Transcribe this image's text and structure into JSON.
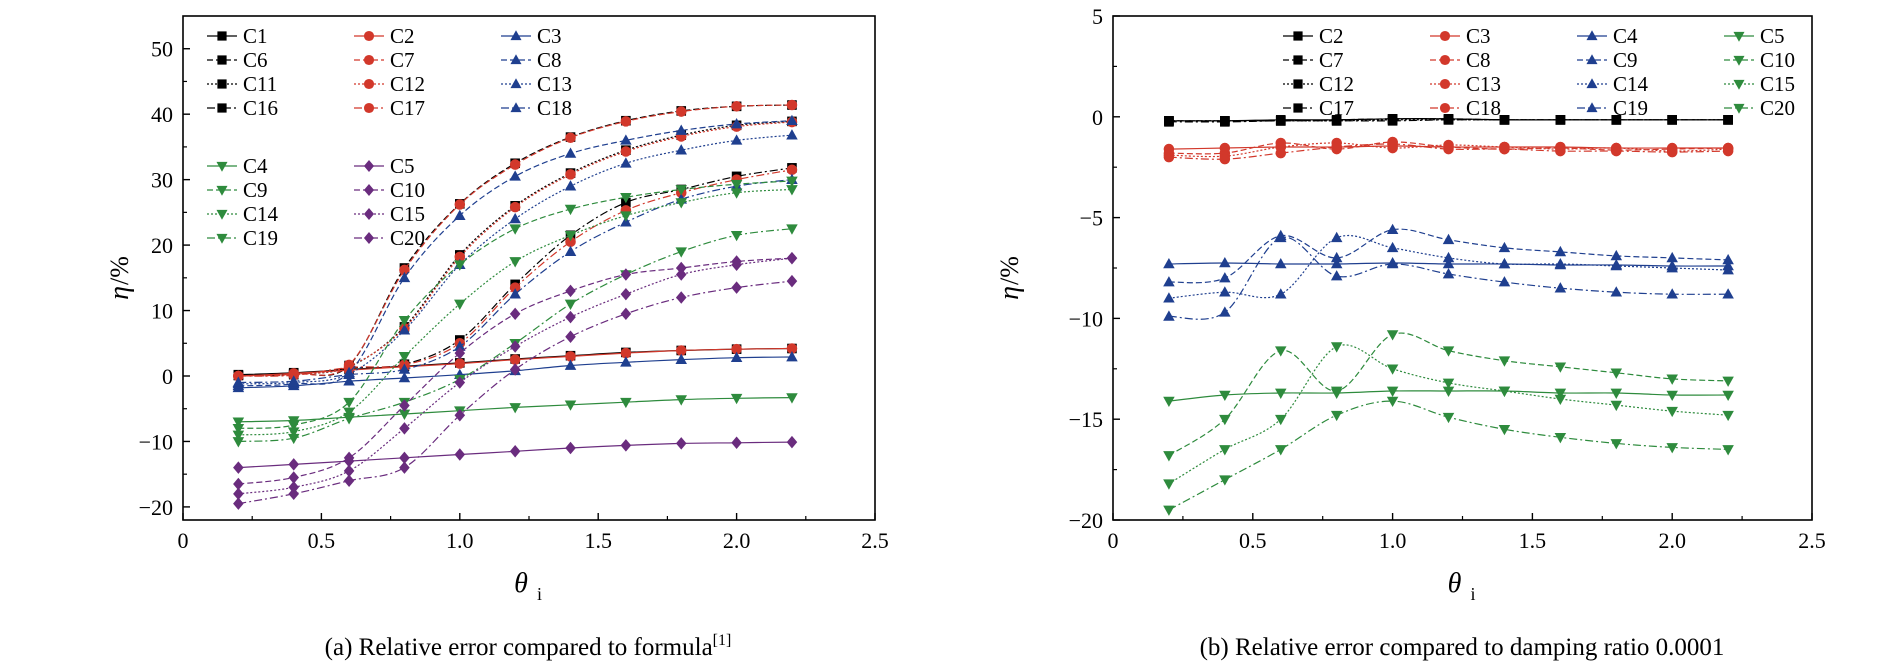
{
  "chart_data": [
    {
      "type": "line",
      "panel_caption": "(a) Relative error compared to formula",
      "caption_superscript": "[1]",
      "xlabel_main": "θ",
      "xlabel_sub": "i",
      "ylabel_main": "η",
      "ylabel_unit": "/%",
      "xlim": [
        0,
        2.5
      ],
      "ylim": [
        -22,
        55
      ],
      "xticks": [
        0,
        0.5,
        1.0,
        1.5,
        2.0,
        2.5
      ],
      "xtick_labels": [
        "0",
        "0.5",
        "1.0",
        "1.5",
        "2.0",
        "2.5"
      ],
      "yticks": [
        -20,
        -10,
        0,
        10,
        20,
        30,
        40,
        50
      ],
      "ytick_labels": [
        "−20",
        "−10",
        "0",
        "10",
        "20",
        "30",
        "40",
        "50"
      ],
      "grid": false,
      "legend_position": "top-left",
      "x": [
        0.2,
        0.4,
        0.6,
        0.8,
        1.0,
        1.2,
        1.4,
        1.6,
        1.8,
        2.0,
        2.2
      ],
      "series": [
        {
          "name": "C1",
          "color": "#000000",
          "marker": "square",
          "values": [
            0.2,
            0.5,
            1.0,
            1.5,
            2.0,
            2.6,
            3.1,
            3.6,
            3.9,
            4.1,
            4.2
          ]
        },
        {
          "name": "C6",
          "color": "#000000",
          "marker": "square",
          "values": [
            0.1,
            0.4,
            1.6,
            16.5,
            26.3,
            32.5,
            36.5,
            39.0,
            40.5,
            41.2,
            41.4
          ]
        },
        {
          "name": "C11",
          "color": "#000000",
          "marker": "square",
          "values": [
            0.1,
            0.3,
            1.4,
            7.5,
            18.5,
            26.0,
            31.0,
            34.5,
            36.8,
            38.3,
            38.9
          ]
        },
        {
          "name": "C16",
          "color": "#000000",
          "marker": "square",
          "values": [
            0.1,
            0.2,
            1.2,
            1.8,
            5.5,
            14.0,
            21.5,
            26.5,
            28.5,
            30.5,
            31.8
          ]
        },
        {
          "name": "C2",
          "color": "#d2382b",
          "marker": "circle",
          "values": [
            0.0,
            0.4,
            0.9,
            1.4,
            1.9,
            2.5,
            3.0,
            3.5,
            3.9,
            4.1,
            4.2
          ]
        },
        {
          "name": "C7",
          "color": "#d2382b",
          "marker": "circle",
          "values": [
            0.0,
            0.3,
            1.7,
            16.2,
            26.2,
            32.3,
            36.4,
            38.9,
            40.4,
            41.2,
            41.4
          ]
        },
        {
          "name": "C12",
          "color": "#d2382b",
          "marker": "circle",
          "values": [
            0.0,
            0.2,
            1.5,
            7.3,
            18.2,
            25.8,
            30.8,
            34.3,
            36.6,
            38.1,
            38.8
          ]
        },
        {
          "name": "C17",
          "color": "#d2382b",
          "marker": "circle",
          "values": [
            0.0,
            0.1,
            1.3,
            1.7,
            5.0,
            13.5,
            20.5,
            25.3,
            28.0,
            30.0,
            31.5
          ]
        },
        {
          "name": "C3",
          "color": "#1f3f8f",
          "marker": "triangle-up",
          "values": [
            -1.8,
            -1.5,
            -0.8,
            -0.3,
            0.2,
            0.8,
            1.6,
            2.1,
            2.5,
            2.8,
            2.9
          ]
        },
        {
          "name": "C8",
          "color": "#1f3f8f",
          "marker": "triangle-up",
          "values": [
            -1.5,
            -1.2,
            0.5,
            15.0,
            24.5,
            30.5,
            34.0,
            36.0,
            37.5,
            38.5,
            39.0
          ]
        },
        {
          "name": "C13",
          "color": "#1f3f8f",
          "marker": "triangle-up",
          "values": [
            -1.2,
            -1.0,
            0.3,
            7.0,
            17.0,
            24.0,
            29.0,
            32.5,
            34.5,
            36.0,
            36.8
          ]
        },
        {
          "name": "C18",
          "color": "#1f3f8f",
          "marker": "triangle-up",
          "values": [
            -1.0,
            -0.8,
            0.2,
            1.0,
            4.5,
            12.5,
            19.0,
            23.5,
            27.0,
            29.0,
            30.0
          ]
        },
        {
          "name": "C4",
          "color": "#2e8b3d",
          "marker": "triangle-down",
          "values": [
            -7.0,
            -6.8,
            -6.3,
            -5.8,
            -5.3,
            -4.8,
            -4.4,
            -4.0,
            -3.6,
            -3.4,
            -3.3
          ]
        },
        {
          "name": "C9",
          "color": "#2e8b3d",
          "marker": "triangle-down",
          "values": [
            -8.0,
            -7.5,
            -4.0,
            8.5,
            17.0,
            22.5,
            25.5,
            27.3,
            28.5,
            29.3,
            29.8
          ]
        },
        {
          "name": "C14",
          "color": "#2e8b3d",
          "marker": "triangle-down",
          "values": [
            -9.0,
            -8.5,
            -5.5,
            3.0,
            11.0,
            17.5,
            21.5,
            24.5,
            26.5,
            28.0,
            28.5
          ]
        },
        {
          "name": "C19",
          "color": "#2e8b3d",
          "marker": "triangle-down",
          "values": [
            -10.0,
            -9.5,
            -6.5,
            -4.0,
            -0.5,
            5.0,
            11.0,
            15.5,
            19.0,
            21.5,
            22.5
          ]
        },
        {
          "name": "C5",
          "color": "#6a2c7e",
          "marker": "diamond",
          "values": [
            -14.0,
            -13.5,
            -13.0,
            -12.5,
            -12.0,
            -11.5,
            -11.0,
            -10.6,
            -10.3,
            -10.2,
            -10.1
          ]
        },
        {
          "name": "C10",
          "color": "#6a2c7e",
          "marker": "diamond",
          "values": [
            -16.5,
            -15.5,
            -12.5,
            -4.5,
            3.5,
            9.5,
            13.0,
            15.5,
            16.5,
            17.5,
            18.0
          ]
        },
        {
          "name": "C15",
          "color": "#6a2c7e",
          "marker": "diamond",
          "values": [
            -18.0,
            -17.0,
            -14.5,
            -8.0,
            -1.0,
            4.5,
            9.0,
            12.5,
            15.5,
            17.0,
            18.0
          ]
        },
        {
          "name": "C20",
          "color": "#6a2c7e",
          "marker": "diamond",
          "values": [
            -19.5,
            -18.0,
            -16.0,
            -14.0,
            -6.0,
            1.0,
            6.0,
            9.5,
            12.0,
            13.5,
            14.5
          ]
        }
      ]
    },
    {
      "type": "line",
      "panel_caption": "(b) Relative error compared to damping ratio 0.0001",
      "xlabel_main": "θ",
      "xlabel_sub": "i",
      "ylabel_main": "η",
      "ylabel_unit": "/%",
      "xlim": [
        0,
        2.5
      ],
      "ylim": [
        -20,
        5
      ],
      "xticks": [
        0,
        0.5,
        1.0,
        1.5,
        2.0,
        2.5
      ],
      "xtick_labels": [
        "0",
        "0.5",
        "1.0",
        "1.5",
        "2.0",
        "2.5"
      ],
      "yticks": [
        -20,
        -15,
        -10,
        -5,
        0,
        5
      ],
      "ytick_labels": [
        "−20",
        "−15",
        "−10",
        "−5",
        "0",
        "5"
      ],
      "grid": false,
      "legend_position": "top-center",
      "x": [
        0.2,
        0.4,
        0.6,
        0.8,
        1.0,
        1.2,
        1.4,
        1.6,
        1.8,
        2.0,
        2.2
      ],
      "series": [
        {
          "name": "C2",
          "color": "#000000",
          "marker": "square",
          "values": [
            -0.2,
            -0.2,
            -0.15,
            -0.15,
            -0.1,
            -0.1,
            -0.15,
            -0.15,
            -0.15,
            -0.15,
            -0.15
          ]
        },
        {
          "name": "C7",
          "color": "#000000",
          "marker": "square",
          "values": [
            -0.2,
            -0.2,
            -0.2,
            -0.15,
            -0.1,
            -0.1,
            -0.15,
            -0.15,
            -0.15,
            -0.15,
            -0.15
          ]
        },
        {
          "name": "C12",
          "color": "#000000",
          "marker": "square",
          "values": [
            -0.2,
            -0.2,
            -0.2,
            -0.2,
            -0.15,
            -0.15,
            -0.15,
            -0.15,
            -0.15,
            -0.15,
            -0.15
          ]
        },
        {
          "name": "C17",
          "color": "#000000",
          "marker": "square",
          "values": [
            -0.25,
            -0.25,
            -0.2,
            -0.2,
            -0.2,
            -0.15,
            -0.15,
            -0.15,
            -0.15,
            -0.15,
            -0.15
          ]
        },
        {
          "name": "C3",
          "color": "#d2382b",
          "marker": "circle",
          "values": [
            -1.6,
            -1.55,
            -1.5,
            -1.5,
            -1.45,
            -1.5,
            -1.5,
            -1.5,
            -1.55,
            -1.55,
            -1.55
          ]
        },
        {
          "name": "C8",
          "color": "#d2382b",
          "marker": "circle",
          "values": [
            -1.8,
            -1.8,
            -1.3,
            -1.6,
            -1.25,
            -1.5,
            -1.6,
            -1.55,
            -1.65,
            -1.6,
            -1.55
          ]
        },
        {
          "name": "C13",
          "color": "#d2382b",
          "marker": "circle",
          "values": [
            -1.9,
            -1.95,
            -1.5,
            -1.3,
            -1.55,
            -1.4,
            -1.5,
            -1.6,
            -1.55,
            -1.7,
            -1.6
          ]
        },
        {
          "name": "C18",
          "color": "#d2382b",
          "marker": "circle",
          "values": [
            -2.0,
            -2.1,
            -1.8,
            -1.5,
            -1.35,
            -1.6,
            -1.6,
            -1.7,
            -1.7,
            -1.75,
            -1.7
          ]
        },
        {
          "name": "C4",
          "color": "#1f3f8f",
          "marker": "triangle-up",
          "values": [
            -7.3,
            -7.25,
            -7.3,
            -7.3,
            -7.25,
            -7.3,
            -7.3,
            -7.35,
            -7.35,
            -7.4,
            -7.4
          ]
        },
        {
          "name": "C9",
          "color": "#1f3f8f",
          "marker": "triangle-up",
          "values": [
            -8.2,
            -8.0,
            -5.9,
            -7.0,
            -5.6,
            -6.1,
            -6.5,
            -6.7,
            -6.9,
            -7.0,
            -7.1
          ]
        },
        {
          "name": "C14",
          "color": "#1f3f8f",
          "marker": "triangle-up",
          "values": [
            -9.0,
            -8.7,
            -8.8,
            -6.0,
            -6.5,
            -7.0,
            -7.3,
            -7.3,
            -7.4,
            -7.5,
            -7.6
          ]
        },
        {
          "name": "C19",
          "color": "#1f3f8f",
          "marker": "triangle-up",
          "values": [
            -9.9,
            -9.7,
            -6.0,
            -7.9,
            -7.3,
            -7.8,
            -8.2,
            -8.5,
            -8.7,
            -8.8,
            -8.8
          ]
        },
        {
          "name": "C5",
          "color": "#2e8b3d",
          "marker": "triangle-down",
          "values": [
            -14.1,
            -13.8,
            -13.7,
            -13.7,
            -13.6,
            -13.6,
            -13.6,
            -13.7,
            -13.7,
            -13.8,
            -13.8
          ]
        },
        {
          "name": "C10",
          "color": "#2e8b3d",
          "marker": "triangle-down",
          "values": [
            -16.8,
            -15.0,
            -11.6,
            -13.6,
            -10.8,
            -11.6,
            -12.1,
            -12.4,
            -12.7,
            -13.0,
            -13.1
          ]
        },
        {
          "name": "C15",
          "color": "#2e8b3d",
          "marker": "triangle-down",
          "values": [
            -18.2,
            -16.5,
            -15.0,
            -11.4,
            -12.5,
            -13.2,
            -13.6,
            -14.0,
            -14.3,
            -14.6,
            -14.8
          ]
        },
        {
          "name": "C20",
          "color": "#2e8b3d",
          "marker": "triangle-down",
          "values": [
            -19.5,
            -18.0,
            -16.5,
            -14.8,
            -14.1,
            -14.9,
            -15.5,
            -15.9,
            -16.2,
            -16.4,
            -16.5
          ]
        }
      ]
    }
  ]
}
